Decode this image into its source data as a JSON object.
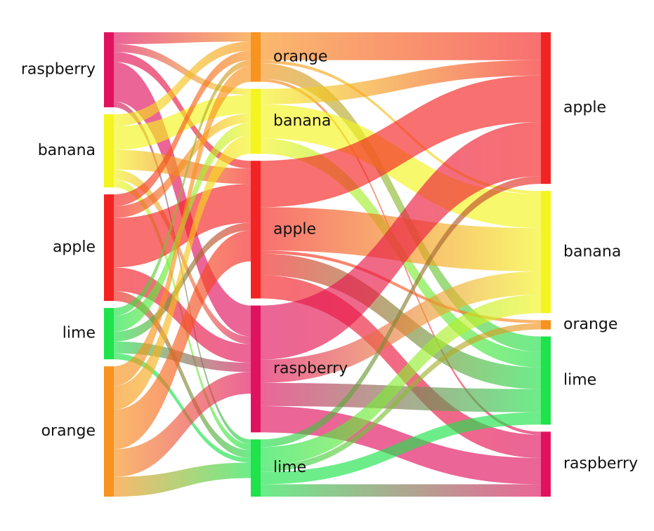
{
  "diagram": {
    "type": "sankey",
    "colors": {
      "raspberry": "#e0125f",
      "banana": "#f4f41e",
      "apple": "#f42323",
      "lime": "#1ee34b",
      "orange": "#f7931e"
    },
    "columns": [
      {
        "id": "left",
        "nodes": [
          {
            "key": "raspberry",
            "label": "raspberry"
          },
          {
            "key": "banana",
            "label": "banana"
          },
          {
            "key": "apple",
            "label": "apple"
          },
          {
            "key": "lime",
            "label": "lime"
          },
          {
            "key": "orange",
            "label": "orange"
          }
        ]
      },
      {
        "id": "middle",
        "nodes": [
          {
            "key": "orange",
            "label": "orange"
          },
          {
            "key": "banana",
            "label": "banana"
          },
          {
            "key": "apple",
            "label": "apple"
          },
          {
            "key": "raspberry",
            "label": "raspberry"
          },
          {
            "key": "lime",
            "label": "lime"
          }
        ]
      },
      {
        "id": "right",
        "nodes": [
          {
            "key": "apple",
            "label": "apple"
          },
          {
            "key": "banana",
            "label": "banana"
          },
          {
            "key": "orange",
            "label": "orange"
          },
          {
            "key": "lime",
            "label": "lime"
          },
          {
            "key": "raspberry",
            "label": "raspberry"
          }
        ]
      }
    ],
    "flows": [
      {
        "from": 0,
        "src": "raspberry",
        "dst": "orange",
        "value": 6
      },
      {
        "from": 0,
        "src": "raspberry",
        "dst": "banana",
        "value": 4
      },
      {
        "from": 0,
        "src": "raspberry",
        "dst": "apple",
        "value": 5
      },
      {
        "from": 0,
        "src": "raspberry",
        "dst": "raspberry",
        "value": 20
      },
      {
        "from": 0,
        "src": "raspberry",
        "dst": "lime",
        "value": 3
      },
      {
        "from": 0,
        "src": "banana",
        "dst": "orange",
        "value": 6
      },
      {
        "from": 0,
        "src": "banana",
        "dst": "banana",
        "value": 12
      },
      {
        "from": 0,
        "src": "banana",
        "dst": "apple",
        "value": 10
      },
      {
        "from": 0,
        "src": "banana",
        "dst": "raspberry",
        "value": 5
      },
      {
        "from": 0,
        "src": "banana",
        "dst": "lime",
        "value": 4
      },
      {
        "from": 0,
        "src": "apple",
        "dst": "orange",
        "value": 6
      },
      {
        "from": 0,
        "src": "apple",
        "dst": "banana",
        "value": 6
      },
      {
        "from": 0,
        "src": "apple",
        "dst": "apple",
        "value": 25
      },
      {
        "from": 0,
        "src": "apple",
        "dst": "raspberry",
        "value": 12
      },
      {
        "from": 0,
        "src": "apple",
        "dst": "lime",
        "value": 5
      },
      {
        "from": 0,
        "src": "lime",
        "dst": "orange",
        "value": 4
      },
      {
        "from": 0,
        "src": "lime",
        "dst": "banana",
        "value": 8
      },
      {
        "from": 0,
        "src": "lime",
        "dst": "apple",
        "value": 5
      },
      {
        "from": 0,
        "src": "lime",
        "dst": "raspberry",
        "value": 6
      },
      {
        "from": 0,
        "src": "lime",
        "dst": "lime",
        "value": 3
      },
      {
        "from": 0,
        "src": "orange",
        "dst": "orange",
        "value": 10
      },
      {
        "from": 0,
        "src": "orange",
        "dst": "banana",
        "value": 12
      },
      {
        "from": 0,
        "src": "orange",
        "dst": "apple",
        "value": 20
      },
      {
        "from": 0,
        "src": "orange",
        "dst": "raspberry",
        "value": 14
      },
      {
        "from": 0,
        "src": "orange",
        "dst": "lime",
        "value": 10
      },
      {
        "from": 1,
        "src": "orange",
        "dst": "apple",
        "value": 18
      },
      {
        "from": 1,
        "src": "orange",
        "dst": "banana",
        "value": 2
      },
      {
        "from": 1,
        "src": "orange",
        "dst": "lime",
        "value": 10
      },
      {
        "from": 1,
        "src": "orange",
        "dst": "raspberry",
        "value": 2
      },
      {
        "from": 1,
        "src": "banana",
        "dst": "apple",
        "value": 10
      },
      {
        "from": 1,
        "src": "banana",
        "dst": "banana",
        "value": 22
      },
      {
        "from": 1,
        "src": "banana",
        "dst": "lime",
        "value": 10
      },
      {
        "from": 1,
        "src": "apple",
        "dst": "apple",
        "value": 30
      },
      {
        "from": 1,
        "src": "apple",
        "dst": "banana",
        "value": 28
      },
      {
        "from": 1,
        "src": "apple",
        "dst": "orange",
        "value": 2
      },
      {
        "from": 1,
        "src": "apple",
        "dst": "lime",
        "value": 14
      },
      {
        "from": 1,
        "src": "apple",
        "dst": "raspberry",
        "value": 15
      },
      {
        "from": 1,
        "src": "raspberry",
        "dst": "apple",
        "value": 35
      },
      {
        "from": 1,
        "src": "raspberry",
        "dst": "banana",
        "value": 15
      },
      {
        "from": 1,
        "src": "raspberry",
        "dst": "lime",
        "value": 15
      },
      {
        "from": 1,
        "src": "raspberry",
        "dst": "raspberry",
        "value": 17
      },
      {
        "from": 1,
        "src": "lime",
        "dst": "apple",
        "value": 5
      },
      {
        "from": 1,
        "src": "lime",
        "dst": "banana",
        "value": 12
      },
      {
        "from": 1,
        "src": "lime",
        "dst": "orange",
        "value": 4
      },
      {
        "from": 1,
        "src": "lime",
        "dst": "lime",
        "value": 8
      },
      {
        "from": 1,
        "src": "lime",
        "dst": "raspberry",
        "value": 8
      }
    ]
  }
}
